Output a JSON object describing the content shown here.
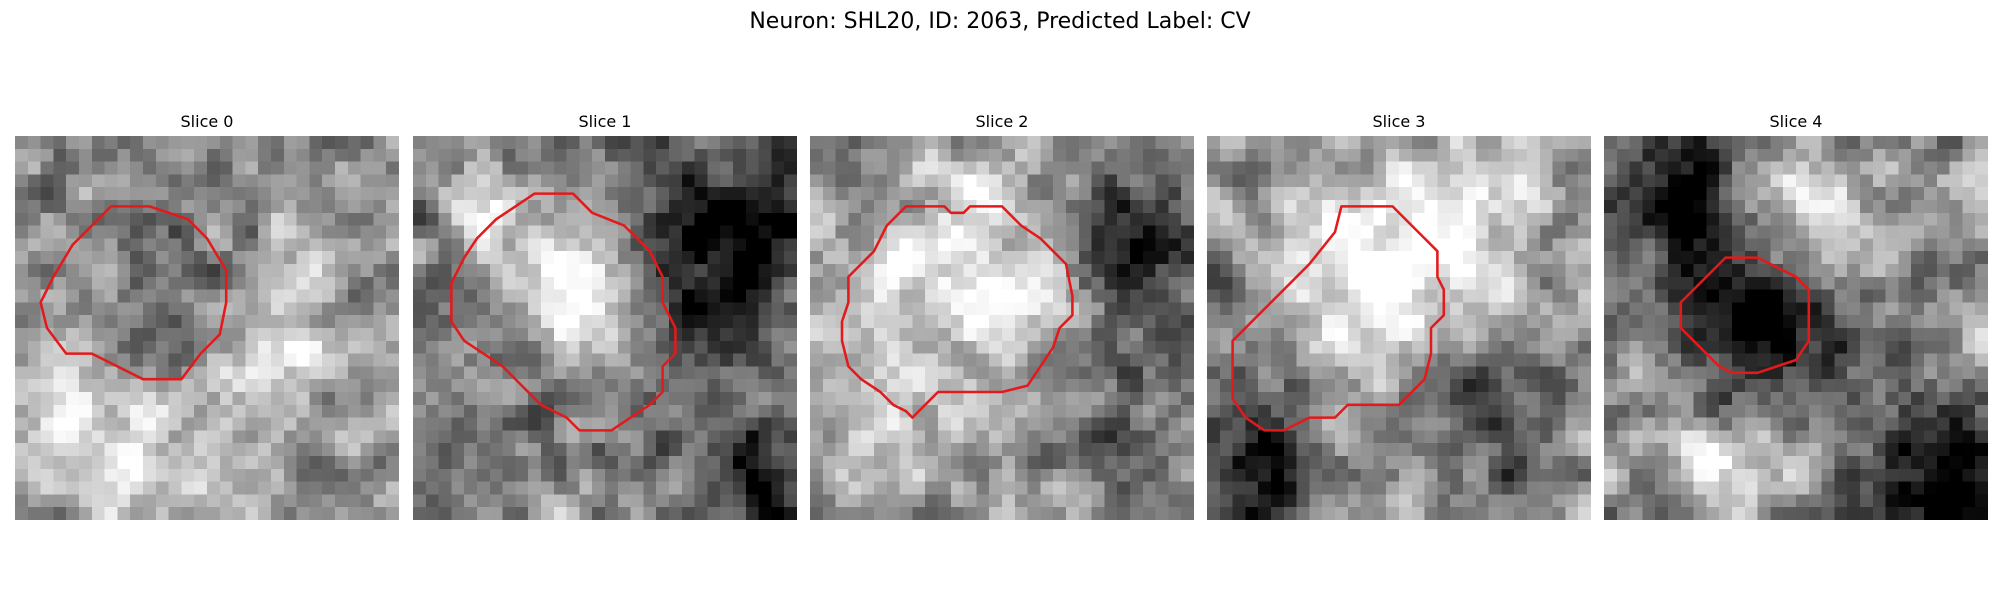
{
  "figure": {
    "title": "Neuron: SHL20, ID: 2063, Predicted Label: CV"
  },
  "contour_color": "#e31a1c",
  "slices": [
    {
      "title": "Slice 0",
      "seed": 11,
      "blobs": [
        {
          "x": 12,
          "y": 12,
          "r": 5.5,
          "a": -0.1
        },
        {
          "x": 20,
          "y": 15,
          "r": 4.0,
          "a": 0.15
        },
        {
          "x": 5,
          "y": 23,
          "r": 4.0,
          "a": 0.15
        },
        {
          "x": 12,
          "y": 26,
          "r": 4.0,
          "a": 0.08
        }
      ],
      "contour": [
        [
          7.5,
          5.5
        ],
        [
          10.5,
          5.5
        ],
        [
          13.5,
          6.5
        ],
        [
          15,
          8
        ],
        [
          16.5,
          10.5
        ],
        [
          16.5,
          13
        ],
        [
          16,
          15.5
        ],
        [
          14.5,
          17
        ],
        [
          13,
          19
        ],
        [
          10,
          19
        ],
        [
          8,
          18
        ],
        [
          6,
          17
        ],
        [
          4,
          17
        ],
        [
          2.5,
          15
        ],
        [
          2,
          13
        ],
        [
          3,
          11
        ],
        [
          4.5,
          8.5
        ],
        [
          6,
          7
        ]
      ]
    },
    {
      "title": "Slice 1",
      "seed": 23,
      "blobs": [
        {
          "x": 12,
          "y": 11,
          "r": 7.2,
          "a": -0.35
        },
        {
          "x": 12,
          "y": 11,
          "r": 5.0,
          "a": 0.55
        },
        {
          "x": 25,
          "y": 8,
          "r": 5.0,
          "a": -0.25
        },
        {
          "x": 26,
          "y": 27,
          "r": 3.5,
          "a": -0.3
        },
        {
          "x": 5,
          "y": 5,
          "r": 3.0,
          "a": 0.15
        }
      ],
      "contour": [
        [
          9.5,
          4.5
        ],
        [
          12.5,
          4.5
        ],
        [
          14,
          6
        ],
        [
          16.5,
          7
        ],
        [
          18.5,
          9
        ],
        [
          19.5,
          11
        ],
        [
          19.5,
          13
        ],
        [
          20.5,
          15
        ],
        [
          20.5,
          17
        ],
        [
          19.5,
          18
        ],
        [
          19.5,
          20
        ],
        [
          18.5,
          21
        ],
        [
          17,
          22
        ],
        [
          15.5,
          23
        ],
        [
          13,
          23
        ],
        [
          12,
          22
        ],
        [
          10,
          21
        ],
        [
          8.5,
          19.5
        ],
        [
          7,
          18
        ],
        [
          5.5,
          17
        ],
        [
          4,
          16
        ],
        [
          3,
          14.5
        ],
        [
          3,
          11.5
        ],
        [
          4,
          9.5
        ],
        [
          5,
          8
        ],
        [
          6.5,
          6.5
        ],
        [
          8,
          5.5
        ]
      ]
    },
    {
      "title": "Slice 2",
      "seed": 37,
      "blobs": [
        {
          "x": 12,
          "y": 11,
          "r": 6.0,
          "a": 0.18
        },
        {
          "x": 26,
          "y": 8,
          "r": 4.5,
          "a": -0.25
        },
        {
          "x": 22,
          "y": 23,
          "r": 4.0,
          "a": -0.15
        },
        {
          "x": 5,
          "y": 24,
          "r": 3.5,
          "a": 0.1
        }
      ],
      "contour": [
        [
          7.5,
          5.5
        ],
        [
          10.5,
          5.5
        ],
        [
          11,
          6
        ],
        [
          12,
          6
        ],
        [
          12.5,
          5.5
        ],
        [
          15,
          5.5
        ],
        [
          16.5,
          7
        ],
        [
          18,
          8
        ],
        [
          19,
          9
        ],
        [
          20,
          10
        ],
        [
          20.5,
          12.5
        ],
        [
          20.5,
          14
        ],
        [
          19.5,
          15
        ],
        [
          19,
          16.5
        ],
        [
          18,
          18
        ],
        [
          17,
          19.5
        ],
        [
          15,
          20
        ],
        [
          12,
          20
        ],
        [
          10,
          20
        ],
        [
          9,
          21
        ],
        [
          8,
          22
        ],
        [
          7.5,
          21.5
        ],
        [
          6.5,
          21
        ],
        [
          5.5,
          20
        ],
        [
          4,
          19
        ],
        [
          3,
          18
        ],
        [
          2.5,
          16
        ],
        [
          2.5,
          14.5
        ],
        [
          3,
          13
        ],
        [
          3,
          11
        ],
        [
          4,
          10
        ],
        [
          5,
          9
        ],
        [
          6,
          7
        ]
      ]
    },
    {
      "title": "Slice 3",
      "seed": 51,
      "blobs": [
        {
          "x": 13,
          "y": 10,
          "r": 5.5,
          "a": 0.25
        },
        {
          "x": 3,
          "y": 26,
          "r": 5.0,
          "a": -0.25
        },
        {
          "x": 22,
          "y": 21,
          "r": 4.0,
          "a": -0.2
        },
        {
          "x": 21,
          "y": 6,
          "r": 3.0,
          "a": 0.12
        }
      ],
      "contour": [
        [
          10.5,
          5.5
        ],
        [
          14.5,
          5.5
        ],
        [
          16,
          7
        ],
        [
          17,
          8
        ],
        [
          18,
          9
        ],
        [
          18,
          11
        ],
        [
          18.5,
          12
        ],
        [
          18.5,
          14
        ],
        [
          17.5,
          15
        ],
        [
          17.5,
          17
        ],
        [
          17,
          19
        ],
        [
          16,
          20
        ],
        [
          15,
          21
        ],
        [
          13,
          21
        ],
        [
          11,
          21
        ],
        [
          10,
          22
        ],
        [
          8,
          22
        ],
        [
          6,
          23
        ],
        [
          4.5,
          23
        ],
        [
          3,
          22
        ],
        [
          2,
          20.5
        ],
        [
          2,
          18.5
        ],
        [
          2,
          16
        ],
        [
          4,
          14
        ],
        [
          6,
          12
        ],
        [
          8,
          10
        ],
        [
          10,
          7.5
        ]
      ]
    },
    {
      "title": "Slice 4",
      "seed": 67,
      "blobs": [
        {
          "x": 12,
          "y": 14,
          "r": 5.0,
          "a": -0.28
        },
        {
          "x": 5,
          "y": 5,
          "r": 3.5,
          "a": -0.3
        },
        {
          "x": 15,
          "y": 5,
          "r": 3.0,
          "a": 0.15
        },
        {
          "x": 18,
          "y": 9,
          "r": 3.5,
          "a": 0.1
        },
        {
          "x": 26,
          "y": 26,
          "r": 4.0,
          "a": -0.35
        },
        {
          "x": 8,
          "y": 26,
          "r": 3.0,
          "a": 0.12
        }
      ],
      "contour": [
        [
          9.5,
          9.5
        ],
        [
          12,
          9.5
        ],
        [
          13,
          10
        ],
        [
          15,
          11
        ],
        [
          16,
          12
        ],
        [
          16,
          14
        ],
        [
          16,
          16
        ],
        [
          15,
          17.5
        ],
        [
          13.5,
          18
        ],
        [
          12,
          18.5
        ],
        [
          10,
          18.5
        ],
        [
          9,
          18
        ],
        [
          8,
          17
        ],
        [
          7,
          16
        ],
        [
          6,
          15
        ],
        [
          6,
          13
        ],
        [
          7,
          12
        ],
        [
          8,
          11
        ],
        [
          9,
          10
        ]
      ]
    }
  ]
}
